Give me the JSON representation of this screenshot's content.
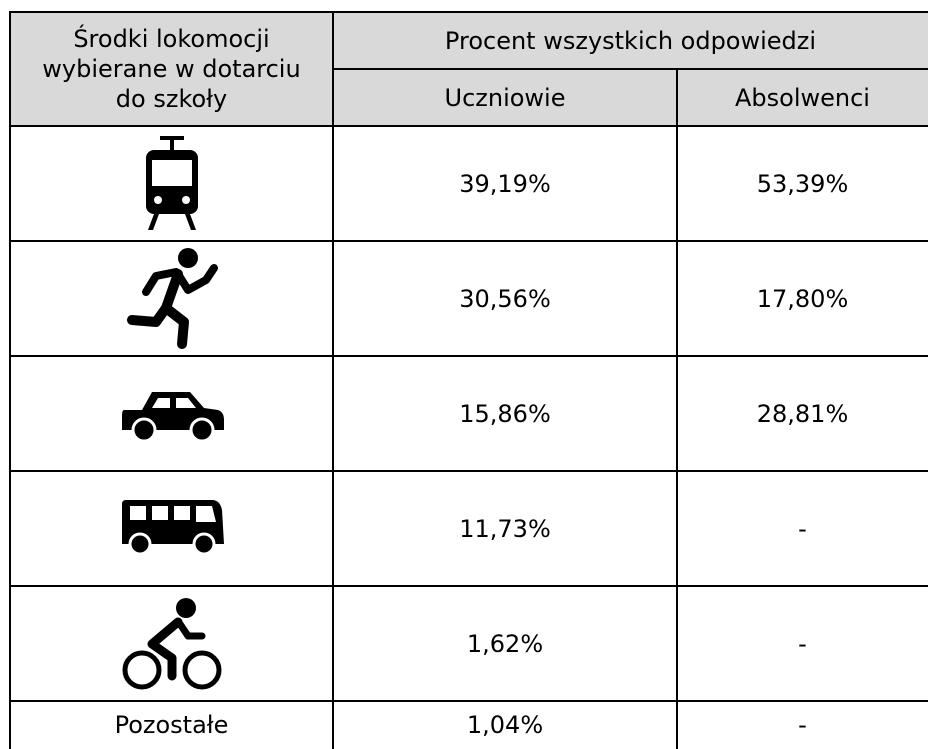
{
  "table": {
    "header": {
      "mode_label": "Środki lokomocji wybierane w dotarciu do szkoły",
      "group_label": "Procent wszystkich odpowiedzi",
      "columns": [
        "Uczniowie",
        "Absolwenci"
      ]
    },
    "rows": [
      {
        "values": [
          "39,19%",
          "53,39%"
        ]
      },
      {
        "values": [
          "30,56%",
          "17,80%"
        ]
      },
      {
        "values": [
          "15,86%",
          "28,81%"
        ]
      },
      {
        "values": [
          "11,73%",
          "-"
        ]
      },
      {
        "values": [
          "1,62%",
          "-"
        ]
      },
      {
        "label": "Pozostałe",
        "values": [
          "1,04%",
          "-"
        ]
      }
    ]
  }
}
